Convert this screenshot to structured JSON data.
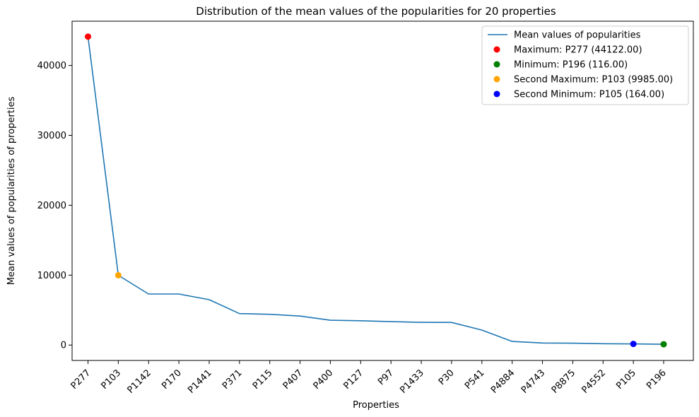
{
  "chart_data": {
    "type": "line",
    "title": "Distribution of the mean values of the popularities for 20 properties",
    "xlabel": "Properties",
    "ylabel": "Mean values of popularities of properties",
    "ylim": [
      -2200,
      46330
    ],
    "yticks": [
      0,
      10000,
      20000,
      30000,
      40000
    ],
    "categories": [
      "P277",
      "P103",
      "P1142",
      "P170",
      "P1441",
      "P371",
      "P115",
      "P407",
      "P400",
      "P127",
      "P97",
      "P1433",
      "P30",
      "P541",
      "P4884",
      "P4743",
      "P8875",
      "P4552",
      "P105",
      "P196"
    ],
    "series": [
      {
        "name": "Mean values of popularities",
        "color": "#1f77b4",
        "values": [
          44122,
          9985,
          7300,
          7300,
          6500,
          4500,
          4400,
          4150,
          3550,
          3480,
          3350,
          3250,
          3240,
          2150,
          520,
          300,
          270,
          200,
          164,
          116
        ]
      }
    ],
    "highlights": [
      {
        "label": "Maximum: P277 (44122.00)",
        "category": "P277",
        "value": 44122,
        "color": "#ff0000"
      },
      {
        "label": "Minimum: P196 (116.00)",
        "category": "P196",
        "value": 116,
        "color": "#008000"
      },
      {
        "label": "Second Maximum: P103 (9985.00)",
        "category": "P103",
        "value": 9985,
        "color": "#ffa500"
      },
      {
        "label": "Second Minimum: P105 (164.00)",
        "category": "P105",
        "value": 164,
        "color": "#0000ff"
      }
    ],
    "legend_position": "top-right",
    "grid": false
  }
}
